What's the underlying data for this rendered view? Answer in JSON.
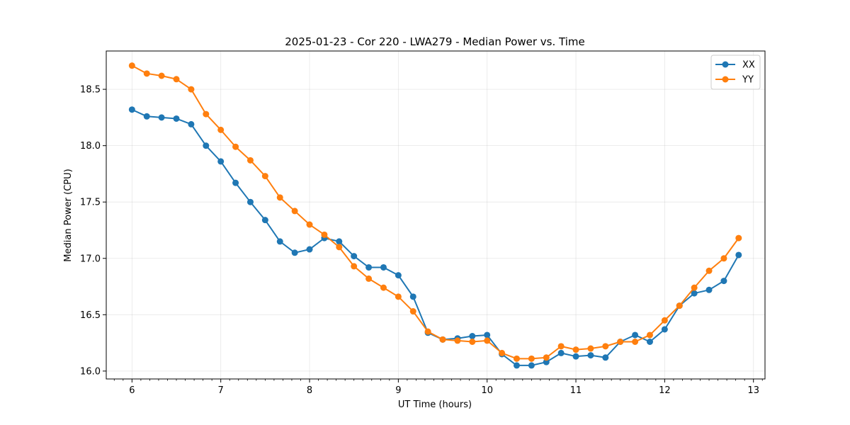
{
  "chart_data": {
    "type": "line",
    "title": "2025-01-23 - Cor 220 - LWA279 - Median Power vs. Time",
    "xlabel": "UT Time (hours)",
    "ylabel": "Median Power (CPU)",
    "xlim": [
      5.71,
      13.13
    ],
    "ylim": [
      15.93,
      18.84
    ],
    "xticks": [
      6,
      7,
      8,
      9,
      10,
      11,
      12,
      13
    ],
    "xtick_labels": [
      "6",
      "7",
      "8",
      "9",
      "10",
      "11",
      "12",
      "13"
    ],
    "yticks": [
      16.0,
      16.5,
      17.0,
      17.5,
      18.0,
      18.5
    ],
    "ytick_labels": [
      "16.0",
      "16.5",
      "17.0",
      "17.5",
      "18.0",
      "18.5"
    ],
    "grid": true,
    "legend_position": "top-right",
    "x": [
      6.0,
      6.1667,
      6.3333,
      6.5,
      6.6667,
      6.8333,
      7.0,
      7.1667,
      7.3333,
      7.5,
      7.6667,
      7.8333,
      8.0,
      8.1667,
      8.3333,
      8.5,
      8.6667,
      8.8333,
      9.0,
      9.1667,
      9.3333,
      9.5,
      9.6667,
      9.8333,
      10.0,
      10.1667,
      10.3333,
      10.5,
      10.6667,
      10.8333,
      11.0,
      11.1667,
      11.3333,
      11.5,
      11.6667,
      11.8333,
      12.0,
      12.1667,
      12.3333,
      12.5,
      12.6667,
      12.8333
    ],
    "series": [
      {
        "name": "XX",
        "color": "#1f77b4",
        "values": [
          18.32,
          18.26,
          18.25,
          18.24,
          18.19,
          18.0,
          17.86,
          17.67,
          17.5,
          17.34,
          17.15,
          17.05,
          17.08,
          17.18,
          17.15,
          17.02,
          16.92,
          16.92,
          16.85,
          16.66,
          16.34,
          16.28,
          16.29,
          16.31,
          16.32,
          16.15,
          16.05,
          16.05,
          16.08,
          16.16,
          16.13,
          16.14,
          16.12,
          16.26,
          16.32,
          16.26,
          16.37,
          16.58,
          16.69,
          16.72,
          16.8,
          17.03
        ]
      },
      {
        "name": "YY",
        "color": "#ff7f0e",
        "values": [
          18.71,
          18.64,
          18.62,
          18.59,
          18.5,
          18.28,
          18.14,
          17.99,
          17.87,
          17.73,
          17.54,
          17.42,
          17.3,
          17.21,
          17.1,
          16.93,
          16.82,
          16.74,
          16.66,
          16.53,
          16.35,
          16.28,
          16.27,
          16.26,
          16.27,
          16.16,
          16.11,
          16.11,
          16.12,
          16.22,
          16.19,
          16.2,
          16.22,
          16.26,
          16.26,
          16.32,
          16.45,
          16.58,
          16.74,
          16.89,
          17.0,
          17.18
        ]
      }
    ]
  }
}
